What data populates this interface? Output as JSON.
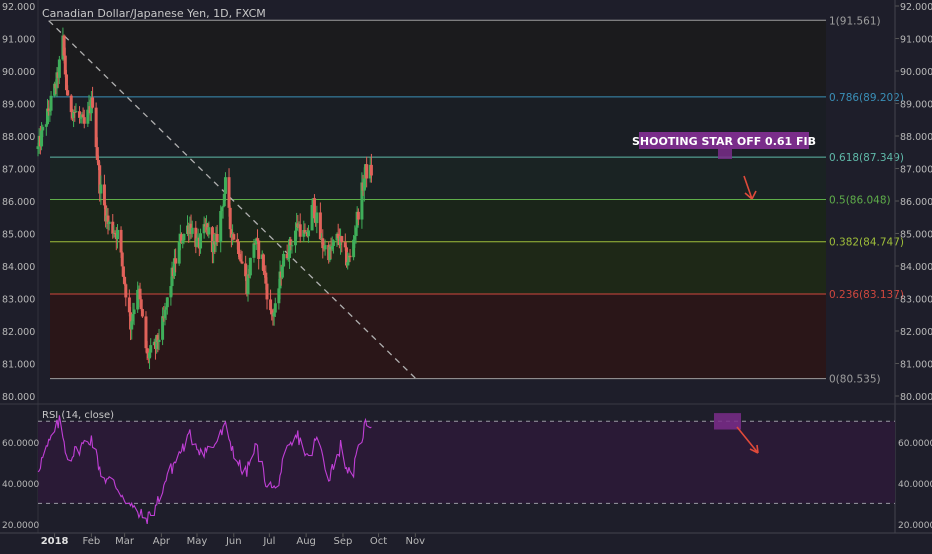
{
  "header": {
    "title": "Canadian Dollar/Japanese Yen, 1D, FXCM"
  },
  "annotation": {
    "text": "SHOOTING STAR OFF 0.61 FIB"
  },
  "colors": {
    "up_candle": "#3fae5a",
    "down_candle": "#e0625a",
    "rsi_line": "#c03fd6",
    "trendline": "#b0b0b0",
    "annotation_bg": "#7a2d8a",
    "arrow": "#e04a3a"
  },
  "chart_data": [
    {
      "type": "candlestick",
      "title": "Canadian Dollar/Japanese Yen, 1D, FXCM",
      "y_axis_ticks": [
        "92.000",
        "91.000",
        "90.000",
        "89.000",
        "88.000",
        "87.000",
        "86.000",
        "85.000",
        "84.000",
        "83.000",
        "82.000",
        "81.000",
        "80.000"
      ],
      "ylim": [
        80,
        92
      ],
      "x_tick_labels": [
        "2018",
        "Feb",
        "Mar",
        "Apr",
        "May",
        "Jun",
        "Jul",
        "Aug",
        "Sep",
        "Oct",
        "Nov"
      ],
      "x_tick_dates": [
        "2018-01-01",
        "2018-02-01",
        "2018-03-01",
        "2018-04-01",
        "2018-05-01",
        "2018-06-01",
        "2018-07-01",
        "2018-08-01",
        "2018-09-01",
        "2018-10-01",
        "2018-11-01"
      ],
      "fib_levels": [
        {
          "ratio": "1",
          "label": "1(91.561)",
          "price": 91.561,
          "color": "#9e9e9e",
          "band": "#1b1b1d"
        },
        {
          "ratio": "0.786",
          "label": "0.786(89.202)",
          "price": 89.202,
          "color": "#3a8fb7",
          "band": "#1a1e24"
        },
        {
          "ratio": "0.618",
          "label": "0.618(87.349)",
          "price": 87.349,
          "color": "#5fb8a8",
          "band": "#1a2323"
        },
        {
          "ratio": "0.5",
          "label": "0.5(86.048)",
          "price": 86.048,
          "color": "#5fae4a",
          "band": "#1a2519"
        },
        {
          "ratio": "0.382",
          "label": "0.382(84.747)",
          "price": 84.747,
          "color": "#9fbf3a",
          "band": "#1e2817"
        },
        {
          "ratio": "0.236",
          "label": "0.236(83.137)",
          "price": 83.137,
          "color": "#d0473e",
          "band": "#2a1618"
        },
        {
          "ratio": "0",
          "label": "0(80.535)",
          "price": 80.535,
          "color": "#9e9e9e",
          "band": null
        }
      ],
      "trendline": {
        "start": {
          "date": "2017-12-27",
          "price": 91.55
        },
        "end": {
          "date": "2018-11-01",
          "price": 80.55
        }
      },
      "waypoints": [
        [
          "2017-12-18",
          87.6
        ],
        [
          "2017-12-28",
          88.9
        ],
        [
          "2018-01-03",
          89.7
        ],
        [
          "2018-01-08",
          90.9
        ],
        [
          "2018-01-12",
          89.0
        ],
        [
          "2018-01-19",
          88.7
        ],
        [
          "2018-01-26",
          88.3
        ],
        [
          "2018-02-02",
          89.1
        ],
        [
          "2018-02-08",
          86.5
        ],
        [
          "2018-02-15",
          85.3
        ],
        [
          "2018-02-23",
          85.0
        ],
        [
          "2018-03-01",
          83.5
        ],
        [
          "2018-03-06",
          82.2
        ],
        [
          "2018-03-12",
          83.4
        ],
        [
          "2018-03-20",
          81.2
        ],
        [
          "2018-03-27",
          81.5
        ],
        [
          "2018-04-03",
          82.3
        ],
        [
          "2018-04-10",
          83.7
        ],
        [
          "2018-04-17",
          84.8
        ],
        [
          "2018-04-25",
          85.3
        ],
        [
          "2018-05-02",
          84.6
        ],
        [
          "2018-05-09",
          85.2
        ],
        [
          "2018-05-16",
          84.5
        ],
        [
          "2018-05-21",
          85.6
        ],
        [
          "2018-05-25",
          86.5
        ],
        [
          "2018-05-29",
          85.2
        ],
        [
          "2018-06-05",
          84.6
        ],
        [
          "2018-06-12",
          83.4
        ],
        [
          "2018-06-18",
          84.8
        ],
        [
          "2018-06-25",
          84.2
        ],
        [
          "2018-07-02",
          82.5
        ],
        [
          "2018-07-06",
          82.6
        ],
        [
          "2018-07-12",
          84.1
        ],
        [
          "2018-07-18",
          84.6
        ],
        [
          "2018-07-25",
          85.3
        ],
        [
          "2018-08-01",
          84.8
        ],
        [
          "2018-08-07",
          85.9
        ],
        [
          "2018-08-14",
          84.7
        ],
        [
          "2018-08-21",
          84.4
        ],
        [
          "2018-08-28",
          84.9
        ],
        [
          "2018-09-04",
          84.2
        ],
        [
          "2018-09-07",
          84.2
        ],
        [
          "2018-09-14",
          85.7
        ],
        [
          "2018-09-20",
          86.9
        ],
        [
          "2018-09-25",
          86.9
        ]
      ]
    },
    {
      "type": "line",
      "title": "RSI (14, close)",
      "y_axis_ticks": [
        "60.0000",
        "40.0000",
        "20.0000"
      ],
      "ylim": [
        18,
        76
      ],
      "bands": [
        70,
        30
      ],
      "waypoints": [
        [
          "2017-12-18",
          47
        ],
        [
          "2017-12-28",
          60
        ],
        [
          "2018-01-05",
          70
        ],
        [
          "2018-01-12",
          52
        ],
        [
          "2018-01-22",
          57
        ],
        [
          "2018-02-01",
          62
        ],
        [
          "2018-02-10",
          43
        ],
        [
          "2018-02-20",
          40
        ],
        [
          "2018-03-02",
          32
        ],
        [
          "2018-03-10",
          26
        ],
        [
          "2018-03-20",
          22
        ],
        [
          "2018-03-27",
          28
        ],
        [
          "2018-04-05",
          42
        ],
        [
          "2018-04-15",
          53
        ],
        [
          "2018-04-25",
          63
        ],
        [
          "2018-05-05",
          55
        ],
        [
          "2018-05-15",
          58
        ],
        [
          "2018-05-25",
          67
        ],
        [
          "2018-06-01",
          55
        ],
        [
          "2018-06-10",
          43
        ],
        [
          "2018-06-20",
          58
        ],
        [
          "2018-06-28",
          41
        ],
        [
          "2018-07-06",
          36
        ],
        [
          "2018-07-15",
          54
        ],
        [
          "2018-07-25",
          63
        ],
        [
          "2018-08-03",
          51
        ],
        [
          "2018-08-10",
          62
        ],
        [
          "2018-08-20",
          43
        ],
        [
          "2018-08-30",
          58
        ],
        [
          "2018-09-08",
          41
        ],
        [
          "2018-09-14",
          56
        ],
        [
          "2018-09-20",
          69
        ],
        [
          "2018-09-25",
          69
        ]
      ]
    }
  ]
}
